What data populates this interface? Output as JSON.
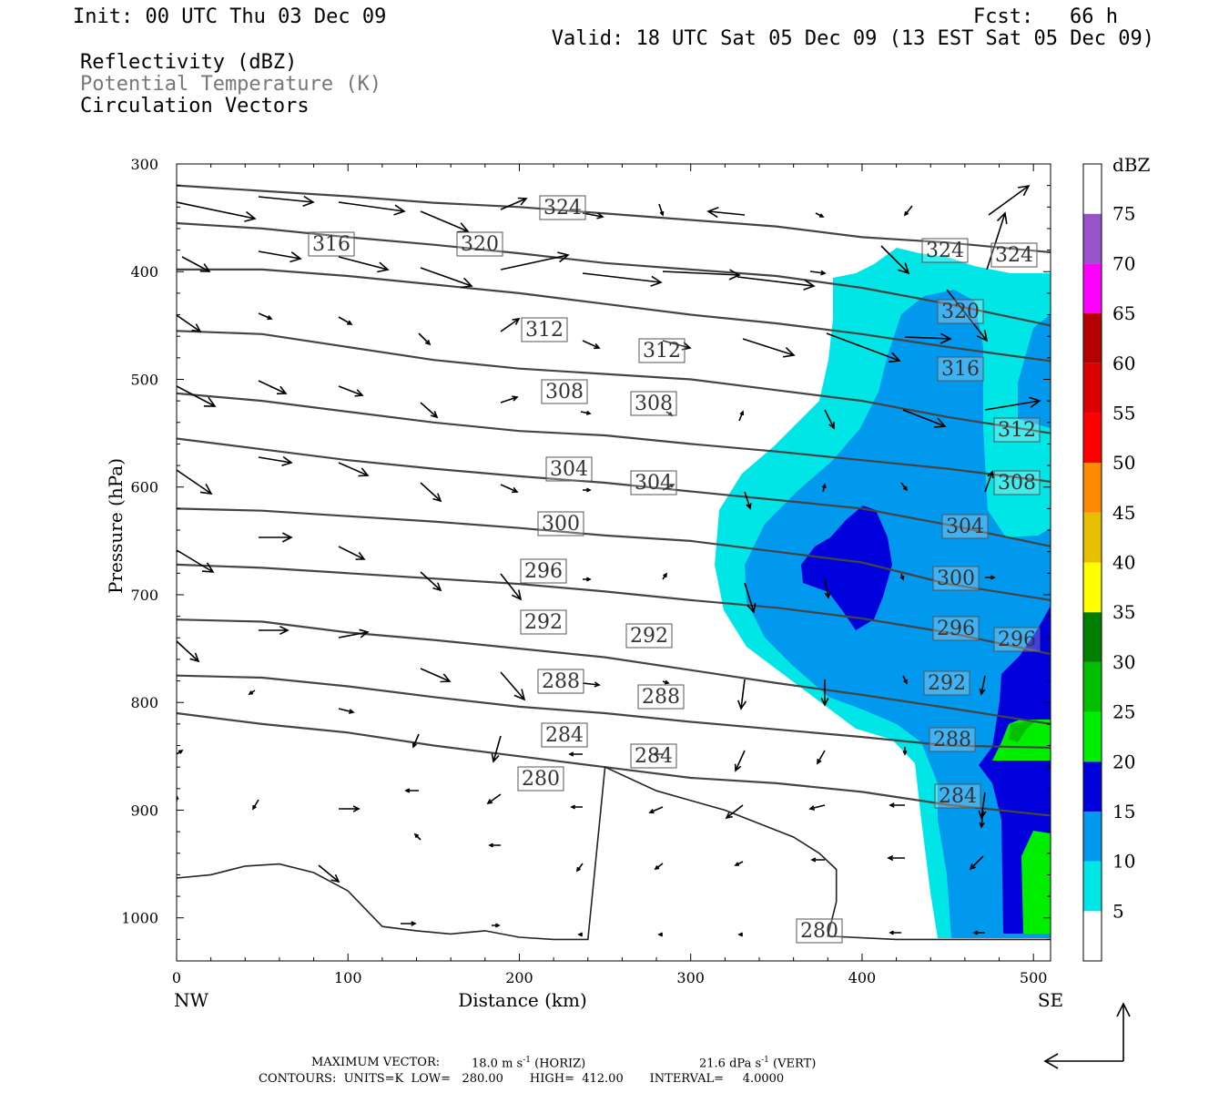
{
  "header": {
    "init": "Init: 00 UTC Thu 03 Dec 09",
    "fcst": "Fcst:   66 h",
    "valid": "Valid: 18 UTC Sat 05 Dec 09 (13 EST Sat 05 Dec 09)",
    "field1": "Reflectivity (dBZ)",
    "field2": "Potential Temperature (K)",
    "field3": "Circulation Vectors"
  },
  "footer": {
    "maxvec_label": "MAXIMUM VECTOR:",
    "maxvec_h_value": "18.0 m s",
    "maxvec_h_unit": "(HORIZ)",
    "maxvec_v_value": "21.6 dPa s",
    "maxvec_v_unit": "(VERT)",
    "exponent": "-1",
    "contours": "CONTOURS:  UNITS=K  LOW=   280.00       HIGH=  412.00       INTERVAL=     4.0000"
  },
  "chart_data": {
    "type": "cross-section",
    "xlabel": "Distance (km)",
    "ylabel": "Pressure (hPa)",
    "xlim": [
      0,
      510
    ],
    "ylim": [
      1040,
      300
    ],
    "x_ticks": [
      "0",
      "100",
      "200",
      "300",
      "400",
      "500"
    ],
    "y_ticks": [
      "300",
      "400",
      "500",
      "600",
      "700",
      "800",
      "900",
      "1000"
    ],
    "x_end_labels": {
      "left": "NW",
      "right": "SE"
    },
    "colorbar": {
      "unit": "dBZ",
      "levels": [
        "5",
        "10",
        "15",
        "20",
        "25",
        "30",
        "35",
        "40",
        "45",
        "50",
        "55",
        "60",
        "65",
        "70",
        "75"
      ],
      "colors": [
        "#00e6e6",
        "#0099ee",
        "#0000dd",
        "#00ee00",
        "#00c000",
        "#008000",
        "#ffff00",
        "#e6bf00",
        "#ff8c00",
        "#ff0000",
        "#dd0000",
        "#b40000",
        "#ff00ff",
        "#9954cc",
        "#ffffff"
      ]
    },
    "theta_label_values": [
      "324",
      "316",
      "320",
      "324",
      "324",
      "320",
      "312",
      "312",
      "316",
      "308",
      "308",
      "312",
      "304",
      "304",
      "308",
      "300",
      "304",
      "296",
      "300",
      "292",
      "292",
      "296",
      "296",
      "288",
      "288",
      "292",
      "284",
      "284",
      "288",
      "280",
      "284",
      "280"
    ],
    "theta_contours": [
      {
        "level": 324,
        "points": [
          [
            0,
            320
          ],
          [
            50,
            325
          ],
          [
            100,
            330
          ],
          [
            150,
            336
          ],
          [
            200,
            340
          ],
          [
            250,
            346
          ],
          [
            300,
            352
          ],
          [
            350,
            358
          ],
          [
            400,
            368
          ],
          [
            450,
            373
          ],
          [
            510,
            382
          ]
        ]
      },
      {
        "level": 320,
        "points": [
          [
            0,
            355
          ],
          [
            50,
            360
          ],
          [
            100,
            368
          ],
          [
            150,
            375
          ],
          [
            200,
            383
          ],
          [
            250,
            392
          ],
          [
            300,
            398
          ],
          [
            350,
            404
          ],
          [
            400,
            415
          ],
          [
            450,
            430
          ],
          [
            510,
            450
          ]
        ]
      },
      {
        "level": 316,
        "points": [
          [
            0,
            398
          ],
          [
            50,
            398
          ],
          [
            100,
            404
          ],
          [
            150,
            412
          ],
          [
            200,
            420
          ],
          [
            250,
            430
          ],
          [
            300,
            440
          ],
          [
            350,
            448
          ],
          [
            400,
            458
          ],
          [
            450,
            470
          ],
          [
            510,
            483
          ]
        ]
      },
      {
        "level": 312,
        "points": [
          [
            0,
            455
          ],
          [
            50,
            458
          ],
          [
            100,
            470
          ],
          [
            150,
            482
          ],
          [
            200,
            490
          ],
          [
            250,
            495
          ],
          [
            300,
            500
          ],
          [
            350,
            510
          ],
          [
            400,
            520
          ],
          [
            450,
            535
          ],
          [
            510,
            550
          ]
        ]
      },
      {
        "level": 308,
        "points": [
          [
            0,
            513
          ],
          [
            50,
            520
          ],
          [
            100,
            530
          ],
          [
            150,
            540
          ],
          [
            200,
            548
          ],
          [
            250,
            552
          ],
          [
            300,
            560
          ],
          [
            350,
            567
          ],
          [
            400,
            575
          ],
          [
            450,
            583
          ],
          [
            510,
            595
          ]
        ]
      },
      {
        "level": 304,
        "points": [
          [
            0,
            555
          ],
          [
            50,
            565
          ],
          [
            100,
            575
          ],
          [
            150,
            583
          ],
          [
            200,
            590
          ],
          [
            250,
            596
          ],
          [
            300,
            604
          ],
          [
            350,
            612
          ],
          [
            400,
            620
          ],
          [
            450,
            635
          ],
          [
            510,
            655
          ]
        ]
      },
      {
        "level": 300,
        "points": [
          [
            0,
            620
          ],
          [
            50,
            622
          ],
          [
            100,
            627
          ],
          [
            150,
            632
          ],
          [
            200,
            638
          ],
          [
            250,
            645
          ],
          [
            300,
            650
          ],
          [
            350,
            660
          ],
          [
            400,
            670
          ],
          [
            450,
            690
          ],
          [
            510,
            705
          ]
        ]
      },
      {
        "level": 296,
        "points": [
          [
            0,
            672
          ],
          [
            50,
            675
          ],
          [
            100,
            680
          ],
          [
            150,
            685
          ],
          [
            200,
            690
          ],
          [
            250,
            697
          ],
          [
            300,
            705
          ],
          [
            350,
            712
          ],
          [
            400,
            722
          ],
          [
            450,
            735
          ],
          [
            510,
            755
          ]
        ]
      },
      {
        "level": 292,
        "points": [
          [
            0,
            723
          ],
          [
            50,
            725
          ],
          [
            100,
            735
          ],
          [
            150,
            742
          ],
          [
            200,
            750
          ],
          [
            250,
            758
          ],
          [
            300,
            770
          ],
          [
            350,
            782
          ],
          [
            400,
            793
          ],
          [
            450,
            805
          ],
          [
            510,
            820
          ]
        ]
      },
      {
        "level": 288,
        "points": [
          [
            0,
            775
          ],
          [
            50,
            777
          ],
          [
            100,
            785
          ],
          [
            150,
            795
          ],
          [
            200,
            804
          ],
          [
            250,
            810
          ],
          [
            300,
            818
          ],
          [
            350,
            825
          ],
          [
            400,
            832
          ],
          [
            450,
            840
          ],
          [
            510,
            842
          ]
        ]
      },
      {
        "level": 284,
        "points": [
          [
            0,
            810
          ],
          [
            50,
            820
          ],
          [
            100,
            828
          ],
          [
            150,
            840
          ],
          [
            200,
            850
          ],
          [
            250,
            860
          ],
          [
            300,
            870
          ],
          [
            350,
            875
          ],
          [
            400,
            883
          ],
          [
            450,
            895
          ],
          [
            510,
            905
          ]
        ]
      },
      {
        "level": 280,
        "points": [
          [
            0,
            963
          ],
          [
            20,
            960
          ],
          [
            40,
            952
          ],
          [
            60,
            950
          ],
          [
            80,
            958
          ],
          [
            100,
            975
          ],
          [
            120,
            1008
          ],
          [
            140,
            1012
          ],
          [
            160,
            1015
          ],
          [
            180,
            1012
          ],
          [
            200,
            1018
          ],
          [
            220,
            1020
          ],
          [
            240,
            1020
          ],
          [
            250,
            860
          ],
          [
            280,
            882
          ],
          [
            320,
            900
          ],
          [
            360,
            925
          ],
          [
            375,
            940
          ],
          [
            385,
            955
          ],
          [
            385,
            985
          ],
          [
            380,
            1017
          ],
          [
            420,
            1020
          ],
          [
            510,
            1020
          ]
        ]
      }
    ]
  }
}
